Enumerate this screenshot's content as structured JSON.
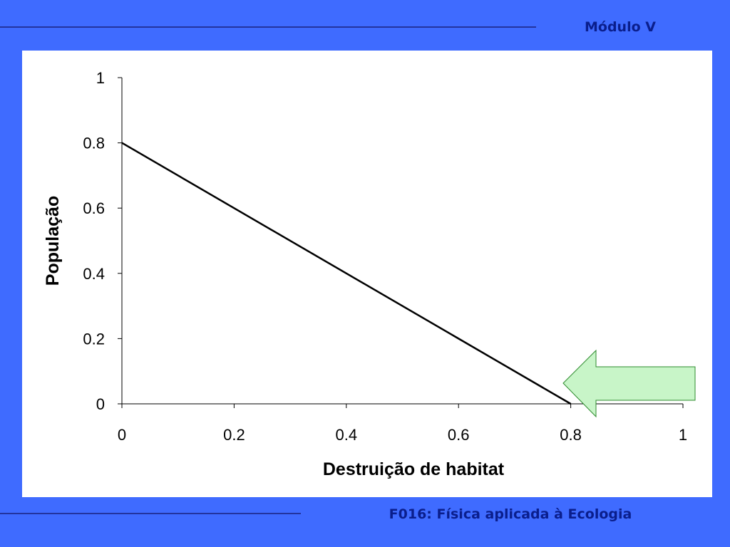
{
  "header": {
    "title": "Módulo V"
  },
  "footer": {
    "text": "F016: Física aplicada à Ecologia"
  },
  "chart_data": {
    "type": "line",
    "x_label": "Destruição de habitat",
    "y_label": "População",
    "x": [
      0,
      0.8
    ],
    "values": [
      0.8,
      0
    ],
    "color": "#000000",
    "xlim": [
      0,
      1
    ],
    "ylim": [
      0,
      1
    ],
    "xticks": [
      0,
      0.2,
      0.4,
      0.6,
      0.8,
      1
    ],
    "yticks": [
      0,
      0.2,
      0.4,
      0.6,
      0.8,
      1
    ]
  }
}
